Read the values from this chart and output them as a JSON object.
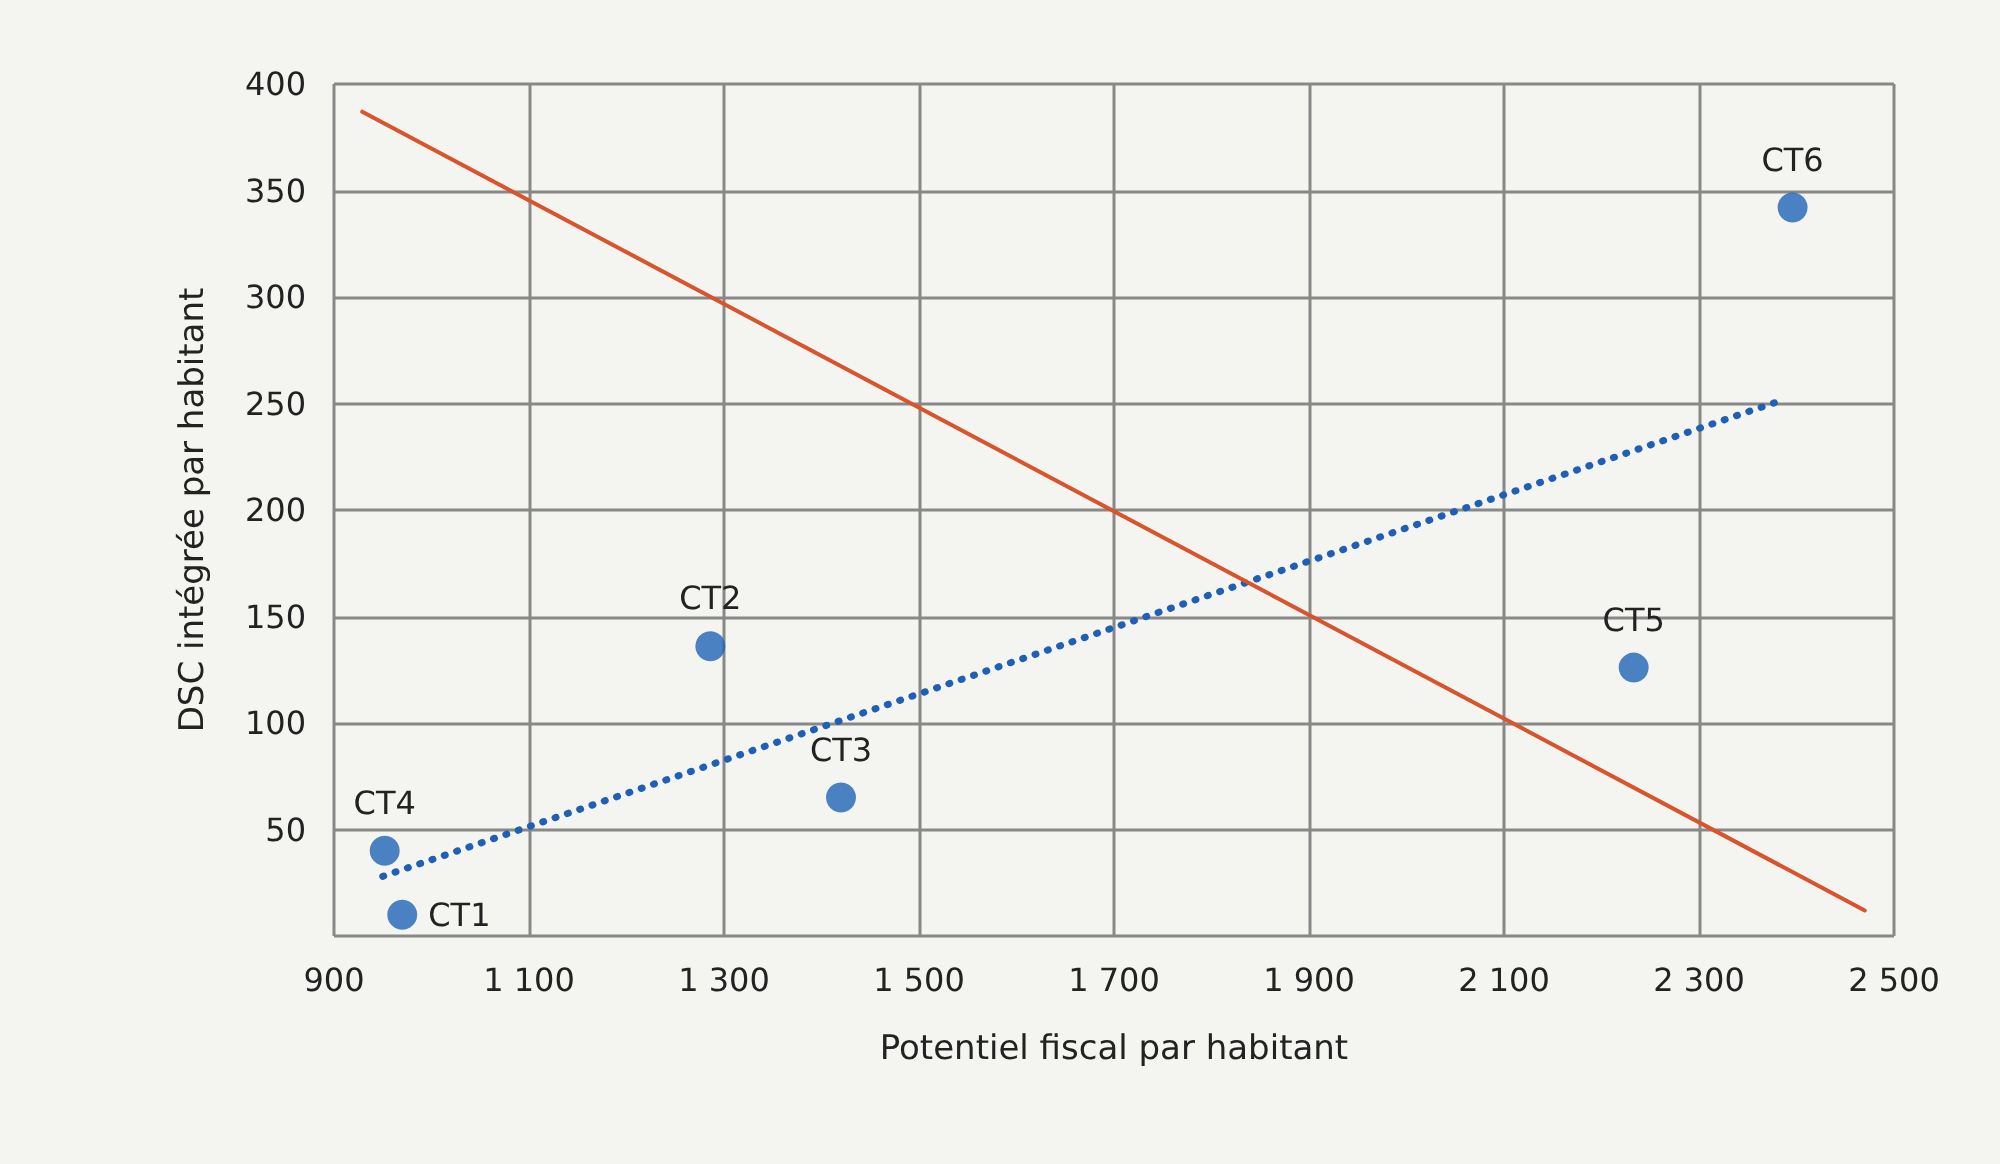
{
  "chart_data": {
    "type": "scatter",
    "xlabel": "Potentiel fiscal par habitant",
    "ylabel": "DSC intégrée par habitant",
    "xlim": [
      900,
      2500
    ],
    "ylim": [
      0,
      400
    ],
    "xticks": [
      900,
      {
        "value": 1100,
        "label": "1 100"
      },
      {
        "value": 1300,
        "label": "1 300"
      },
      {
        "value": 1500,
        "label": "1 500"
      },
      {
        "value": 1700,
        "label": "1 700"
      },
      {
        "value": 1900,
        "label": "1 900"
      },
      {
        "value": 2100,
        "label": "2 100"
      },
      {
        "value": 2300,
        "label": "2 300"
      },
      {
        "value": 2500,
        "label": "2 500"
      }
    ],
    "yticks": [
      {
        "value": 0,
        "label": null
      },
      50,
      100,
      150,
      200,
      250,
      300,
      350,
      400
    ],
    "grid": true,
    "marker": "circle",
    "series": [
      {
        "type": "scatter",
        "color": "#1f64b8",
        "x": [
          970,
          1286,
          1420,
          952,
          2233,
          2396
        ],
        "values": [
          10,
          136,
          65,
          40,
          126,
          342
        ]
      },
      {
        "type": "line",
        "color": "#1f5fb5",
        "line_style": "dotted",
        "marker": "none",
        "x": [
          950,
          2388
        ],
        "values": [
          28,
          252
        ]
      },
      {
        "type": "line",
        "color": "#d9532b",
        "line_style": "solid",
        "marker": "none",
        "x": [
          929,
          2470
        ],
        "values": [
          387,
          12
        ]
      }
    ],
    "annotations": [
      {
        "text": "CT1",
        "x": 970,
        "y": 10
      },
      {
        "text": "CT2",
        "x": 1286,
        "y": 136
      },
      {
        "text": "CT3",
        "x": 1420,
        "y": 65
      },
      {
        "text": "CT4",
        "x": 952,
        "y": 40
      },
      {
        "text": "CT5",
        "x": 2233,
        "y": 126
      },
      {
        "text": "CT6",
        "x": 2396,
        "y": 342
      }
    ]
  }
}
